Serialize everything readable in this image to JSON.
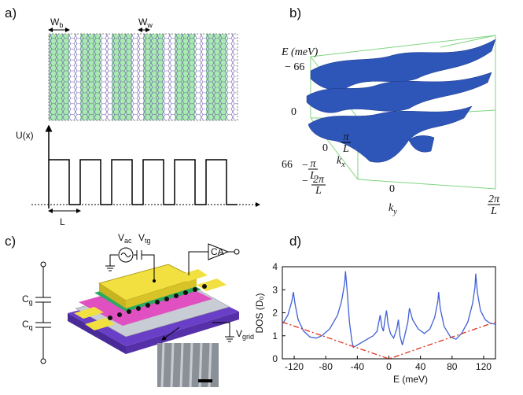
{
  "panel_labels": [
    "a)",
    "b)",
    "c)",
    "d)"
  ],
  "panel_a": {
    "w_b": {
      "main": "W",
      "sub": "b"
    },
    "w_w": {
      "main": "W",
      "sub": "w"
    },
    "potential": "U(x)",
    "period": "L"
  },
  "panel_b": {
    "energy_label": "E (meV)",
    "energy_ticks": [
      "− 66",
      "0",
      "66"
    ],
    "kx_label": {
      "main": "k",
      "sub": "x"
    },
    "ky_label": {
      "main": "k",
      "sub": "y"
    },
    "kx_ticks": [
      {
        "num": "π",
        "den": "L"
      },
      "0"
    ],
    "ky_ticks": [
      {
        "sign": "−",
        "num": "π",
        "den": "L"
      },
      {
        "sign": "−",
        "num": "2π",
        "den": "L"
      },
      "0",
      {
        "num": "2π",
        "den": "L"
      }
    ]
  },
  "panel_c": {
    "v_ac": {
      "main": "V",
      "sub": "ac"
    },
    "v_tg": {
      "main": "V",
      "sub": "tg"
    },
    "amplifier": "CA",
    "c_g": {
      "main": "C",
      "sub": "g"
    },
    "c_q": {
      "main": "C",
      "sub": "q"
    },
    "v_grid": {
      "main": "V",
      "sub": "grid"
    }
  },
  "chart_data": {
    "type": "line",
    "x_label": "E (meV)",
    "y_label": "DOS (D₀)",
    "xlim": [
      -135,
      135
    ],
    "xticks": [
      -120,
      -80,
      -40,
      0,
      40,
      80,
      120
    ],
    "ylim": [
      0,
      4
    ],
    "yticks": [
      0,
      1,
      2,
      3,
      4
    ],
    "grid": false,
    "series": [
      {
        "color": "#3f5fd8",
        "line_style": "solid",
        "x": [
          -135,
          -128,
          -123,
          -121,
          -119,
          -115,
          -108,
          -100,
          -92,
          -85,
          -75,
          -65,
          -60,
          -56,
          -55,
          -53,
          -50,
          -47,
          -45,
          -40,
          -30,
          -20,
          -15,
          -11,
          -9,
          -7,
          -5,
          -3,
          -1,
          2,
          6,
          10,
          12,
          14,
          17,
          20,
          24,
          26,
          30,
          37,
          45,
          52,
          58,
          62,
          63,
          65,
          70,
          78,
          85,
          92,
          100,
          106,
          109,
          110,
          112,
          116,
          122,
          128,
          135
        ],
        "values": [
          1.5,
          1.9,
          2.5,
          2.9,
          2.4,
          1.7,
          1.2,
          0.95,
          0.9,
          1.0,
          1.3,
          1.9,
          2.5,
          3.3,
          3.8,
          3.0,
          1.6,
          0.8,
          0.5,
          0.6,
          0.8,
          1.0,
          1.2,
          1.9,
          1.4,
          1.2,
          1.7,
          2.1,
          1.5,
          1.1,
          0.9,
          1.3,
          1.7,
          1.0,
          0.6,
          1.0,
          1.6,
          2.2,
          1.7,
          1.3,
          1.1,
          1.3,
          1.8,
          2.5,
          2.9,
          2.2,
          1.4,
          0.95,
          0.85,
          1.1,
          1.6,
          2.4,
          3.1,
          3.7,
          2.9,
          2.1,
          1.7,
          1.55,
          1.5
        ]
      },
      {
        "color": "#e0301e",
        "line_style": "dashdot",
        "x": [
          -135,
          0,
          135
        ],
        "values": [
          1.6,
          0,
          1.6
        ]
      }
    ]
  }
}
